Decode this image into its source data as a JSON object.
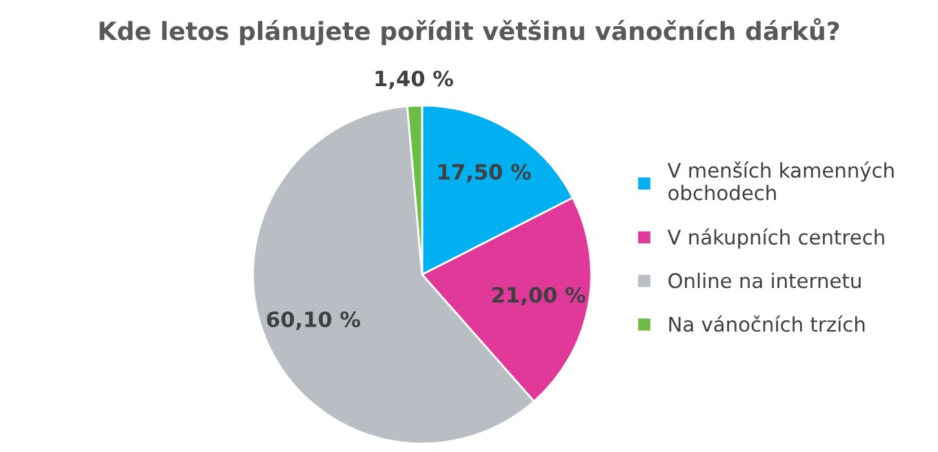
{
  "chart_data": {
    "type": "pie",
    "title": "Kde letos plánujete pořídit většinu vánočních dárků?",
    "categories": [
      "V menších kamenných obchodech",
      "V nákupních centrech",
      "Online na internetu",
      "Na vánočních trzích"
    ],
    "values": [
      17.5,
      21.0,
      60.1,
      1.4
    ],
    "colors": [
      "#00b0f0",
      "#e0399a",
      "#b9bec4",
      "#6cbd45"
    ],
    "value_labels": [
      "17,50 %",
      "21,00 %",
      "60,10 %",
      "1,40 %"
    ],
    "legend": "right"
  }
}
